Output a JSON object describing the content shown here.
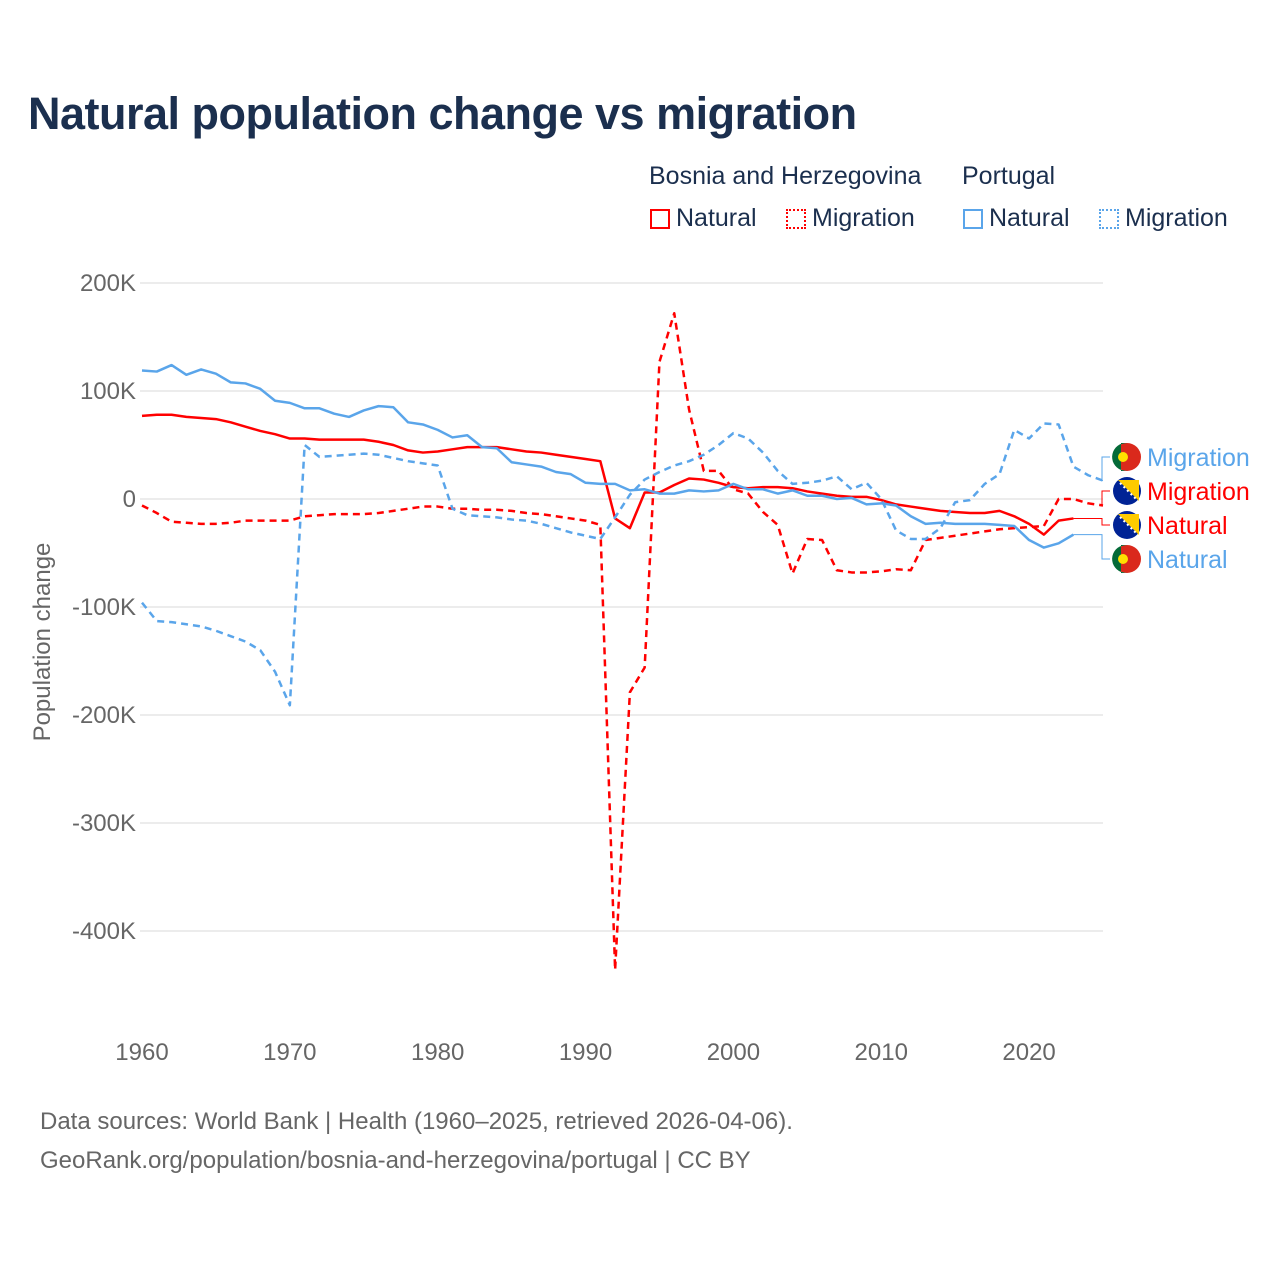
{
  "title": "Natural population change vs migration",
  "legend": {
    "groups": [
      {
        "name": "Bosnia and Herzegovina",
        "items": [
          "Natural",
          "Migration"
        ],
        "color": "#ff0000"
      },
      {
        "name": "Portugal",
        "items": [
          "Natural",
          "Migration"
        ],
        "color": "#5aa5ea"
      }
    ]
  },
  "footer": {
    "line1": "Data sources: World Bank | Health (1960–2025, retrieved 2026-04-06).",
    "line2": "GeoRank.org/population/bosnia-and-herzegovina/portugal | CC BY"
  },
  "chart_data": {
    "type": "line",
    "title": "Natural population change vs migration",
    "xlabel": "",
    "ylabel": "Population change",
    "xlim": [
      1960,
      2025
    ],
    "ylim": [
      -450000,
      200000
    ],
    "xticks": [
      "1960",
      "1970",
      "1980",
      "1990",
      "2000",
      "2010",
      "2020"
    ],
    "yticks": [
      {
        "v": 200000,
        "label": "200K"
      },
      {
        "v": 100000,
        "label": "100K"
      },
      {
        "v": 0,
        "label": "0"
      },
      {
        "v": -100000,
        "label": "-100K"
      },
      {
        "v": -200000,
        "label": "-200K"
      },
      {
        "v": -300000,
        "label": "-300K"
      },
      {
        "v": -400000,
        "label": "-400K"
      }
    ],
    "grid": true,
    "x_start": 1960,
    "units": "thousands",
    "series": [
      {
        "name": "Bosnia and Herzegovina Natural",
        "end_label": "Natural",
        "color": "#ff0000",
        "dash": false,
        "flag": "ba",
        "values": [
          77,
          78,
          78,
          76,
          75,
          74,
          71,
          67,
          63,
          60,
          56,
          56,
          55,
          55,
          55,
          55,
          53,
          50,
          45,
          43,
          44,
          46,
          48,
          48,
          48,
          46,
          44,
          43,
          41,
          39,
          37,
          35,
          -18,
          -27,
          6,
          6,
          13,
          19,
          18,
          15,
          11,
          10,
          11,
          11,
          10,
          7,
          5,
          3,
          2,
          2,
          -1,
          -5,
          -7,
          -9,
          -11,
          -12,
          -13,
          -13,
          -11,
          -16,
          -23,
          -33,
          -20,
          -18
        ]
      },
      {
        "name": "Bosnia and Herzegovina Migration",
        "end_label": "Migration",
        "color": "#ff0000",
        "dash": true,
        "flag": "ba",
        "values": [
          -6,
          -13,
          -21,
          -22,
          -23,
          -23,
          -22,
          -20,
          -20,
          -20,
          -20,
          -16,
          -15,
          -14,
          -14,
          -14,
          -13,
          -11,
          -9,
          -7,
          -7,
          -9,
          -9,
          -10,
          -10,
          -11,
          -13,
          -14,
          -16,
          -18,
          -20,
          -24,
          -436,
          -179,
          -156,
          127,
          172,
          83,
          26,
          26,
          9,
          5,
          -12,
          -24,
          -69,
          -37,
          -38,
          -66,
          -68,
          -68,
          -67,
          -65,
          -66,
          -38,
          -36,
          -34,
          -32,
          -30,
          -28,
          -27,
          -26,
          -25,
          0,
          0,
          -4,
          -6
        ]
      },
      {
        "name": "Portugal Natural",
        "end_label": "Natural",
        "color": "#5aa5ea",
        "dash": false,
        "flag": "pt",
        "values": [
          119,
          118,
          124,
          115,
          120,
          116,
          108,
          107,
          102,
          91,
          89,
          84,
          84,
          79,
          76,
          82,
          86,
          85,
          71,
          69,
          64,
          57,
          59,
          48,
          47,
          34,
          32,
          30,
          25,
          23,
          15,
          14,
          14,
          8,
          9,
          5,
          5,
          8,
          7,
          8,
          14,
          9,
          9,
          5,
          8,
          3,
          3,
          0,
          1,
          -5,
          -4,
          -6,
          -16,
          -23,
          -22,
          -23,
          -23,
          -23,
          -24,
          -25,
          -38,
          -45,
          -41,
          -33
        ]
      },
      {
        "name": "Portugal Migration",
        "end_label": "Migration",
        "color": "#5aa5ea",
        "dash": true,
        "flag": "pt",
        "values": [
          -96,
          -113,
          -114,
          -116,
          -118,
          -122,
          -127,
          -132,
          -140,
          -160,
          -191,
          50,
          39,
          40,
          41,
          42,
          41,
          38,
          35,
          33,
          31,
          -9,
          -15,
          -16,
          -17,
          -19,
          -20,
          -23,
          -27,
          -31,
          -34,
          -37,
          -17,
          4,
          18,
          25,
          31,
          35,
          41,
          50,
          61,
          56,
          43,
          26,
          14,
          15,
          17,
          21,
          9,
          15,
          0,
          -29,
          -37,
          -37,
          -27,
          -3,
          -1,
          14,
          23,
          64,
          56,
          70,
          69,
          30,
          22,
          17
        ]
      }
    ]
  }
}
